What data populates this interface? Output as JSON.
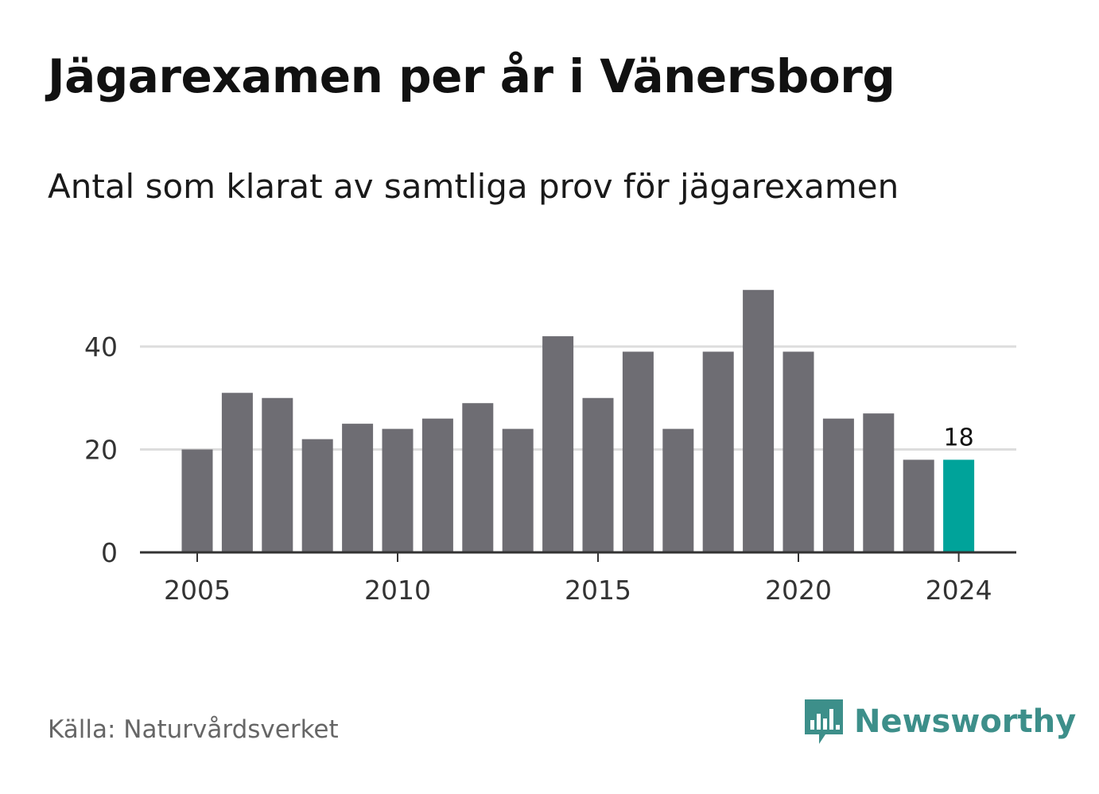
{
  "header": {
    "title": "Jägarexamen per år i Vänersborg",
    "subtitle": "Antal som klarat av samtliga prov för jägarexamen"
  },
  "footer": {
    "source": "Källa: Naturvårdsverket",
    "brand": "Newsworthy",
    "brand_icon": "bar-chart-speech-bubble-icon"
  },
  "colors": {
    "bar": "#6e6d73",
    "highlight": "#00a39a",
    "grid": "#dddddd",
    "axis": "#333333",
    "brand": "#3d8f8a"
  },
  "chart_data": {
    "type": "bar",
    "title": "Jägarexamen per år i Vänersborg",
    "subtitle": "Antal som klarat av samtliga prov för jägarexamen",
    "xlabel": "",
    "ylabel": "",
    "categories": [
      2005,
      2006,
      2007,
      2008,
      2009,
      2010,
      2011,
      2012,
      2013,
      2014,
      2015,
      2016,
      2017,
      2018,
      2019,
      2020,
      2021,
      2022,
      2023,
      2024
    ],
    "values": [
      20,
      31,
      30,
      22,
      25,
      24,
      26,
      29,
      24,
      42,
      30,
      39,
      24,
      39,
      51,
      39,
      26,
      27,
      18,
      18
    ],
    "highlight_category": 2024,
    "highlight_label": "18",
    "x_tick_labels": [
      "2005",
      "2010",
      "2015",
      "2020",
      "2024"
    ],
    "y_ticks": [
      0,
      20,
      40
    ],
    "ylim": [
      0,
      55
    ],
    "grid": true,
    "legend": "none"
  }
}
